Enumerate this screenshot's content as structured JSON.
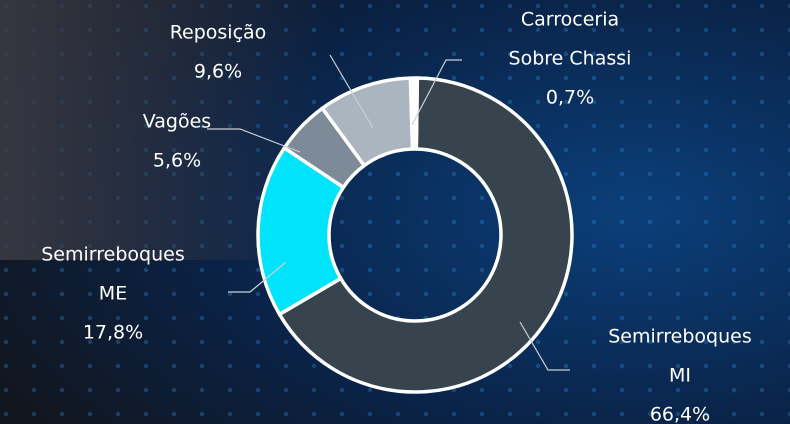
{
  "chart_data": {
    "type": "donut",
    "categories": [
      [
        "Semirreboques",
        "MI"
      ],
      [
        "Semirreboques",
        "ME"
      ],
      [
        "Vagões"
      ],
      [
        "Reposição"
      ],
      [
        "Carroceria",
        "Sobre Chassi"
      ]
    ],
    "values": [
      66.4,
      17.8,
      5.6,
      9.6,
      0.7
    ],
    "value_labels": [
      "66,4%",
      "17,8%",
      "5,6%",
      "9,6%",
      "0,7%"
    ],
    "colors": [
      "#37434d",
      "#00e4fb",
      "#7d8a97",
      "#aab5c0",
      "#ffffff"
    ]
  }
}
